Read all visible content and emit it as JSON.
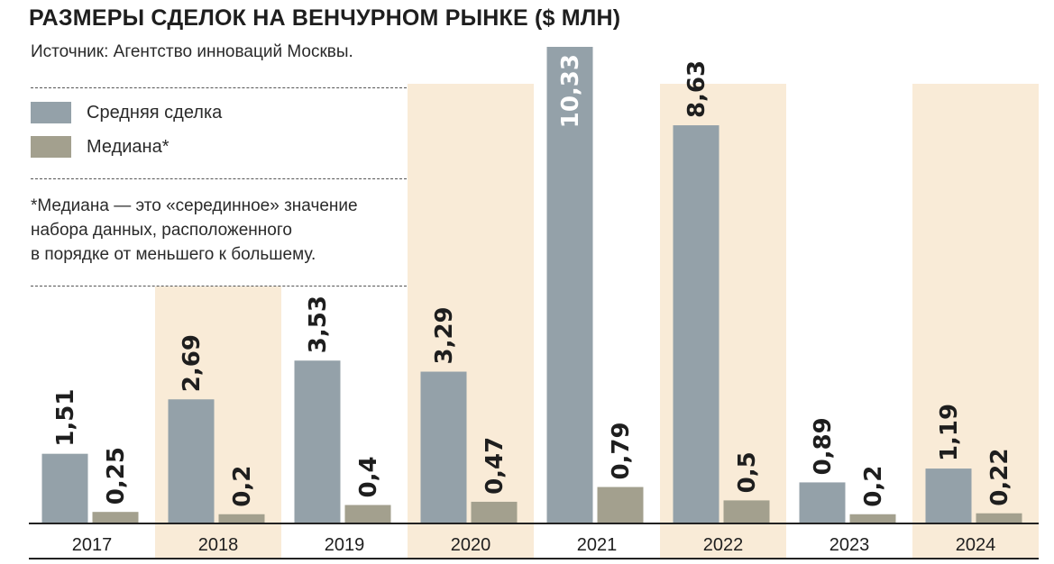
{
  "title": "РАЗМЕРЫ СДЕЛОК НА ВЕНЧУРНОМ РЫНКЕ ($ МЛН)",
  "source": "Источник: Агентство инноваций Москвы.",
  "legend": [
    {
      "label": "Средняя сделка",
      "color": "#94a1a9"
    },
    {
      "label": "Медиана*",
      "color": "#a3a08e"
    }
  ],
  "note": "*Медиана  — это «серединное» значение\nнабора данных, расположенного\nв порядке от меньшего к большему.",
  "colors": {
    "highlight_band": "#f9ebd7",
    "axis": "#222222"
  },
  "chart_data": {
    "type": "bar",
    "title": "РАЗМЕРЫ СДЕЛОК НА ВЕНЧУРНОМ РЫНКЕ ($ МЛН)",
    "categories": [
      "2017",
      "2018",
      "2019",
      "2020",
      "2021",
      "2022",
      "2023",
      "2024"
    ],
    "series": [
      {
        "name": "Средняя сделка",
        "values": [
          1.51,
          2.69,
          3.53,
          3.29,
          10.33,
          8.63,
          0.89,
          1.19
        ],
        "labels": [
          "1,51",
          "2,69",
          "3,53",
          "3,29",
          "10,33",
          "8,63",
          "0,89",
          "1,19"
        ]
      },
      {
        "name": "Медиана*",
        "values": [
          0.25,
          0.2,
          0.4,
          0.47,
          0.79,
          0.5,
          0.2,
          0.22
        ],
        "labels": [
          "0,25",
          "0,2",
          "0,4",
          "0,47",
          "0,79",
          "0,5",
          "0,2",
          "0,22"
        ]
      }
    ],
    "highlighted_categories": [
      "2018",
      "2020",
      "2022",
      "2024"
    ],
    "xlabel": "",
    "ylabel": "",
    "grid": false
  }
}
